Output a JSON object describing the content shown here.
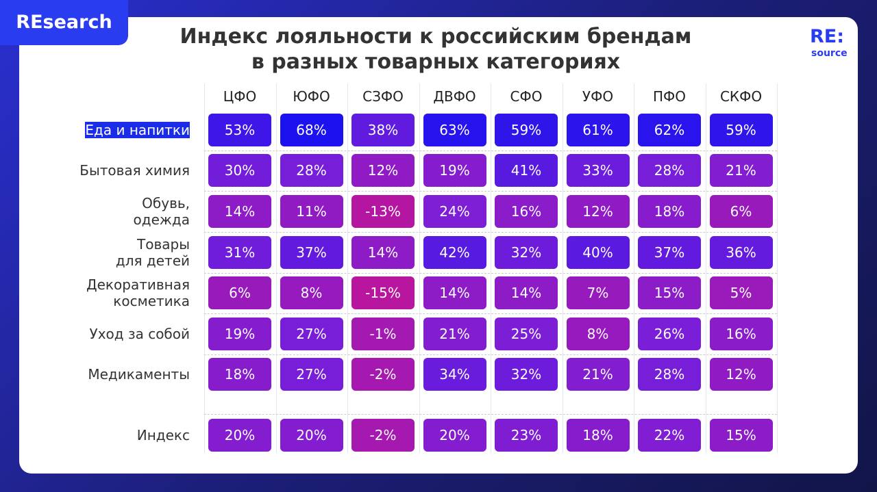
{
  "header": {
    "badge": "REsearch",
    "title": [
      "Индекс лояльности к российским брендам",
      "в разных товарных категориях"
    ],
    "logo": {
      "main": "RE:",
      "sub": "source"
    }
  },
  "table": {
    "columns": [
      "ЦФО",
      "ЮФО",
      "СЗФО",
      "ДВФО",
      "СФО",
      "УФО",
      "ПФО",
      "СКФО"
    ],
    "rows": [
      {
        "label": [
          "Еда и напитки"
        ],
        "cells": [
          "53%",
          "68%",
          "38%",
          "63%",
          "59%",
          "61%",
          "62%",
          "59%"
        ]
      },
      {
        "label": [
          "Бытовая химия"
        ],
        "cells": [
          "30%",
          "28%",
          "12%",
          "19%",
          "41%",
          "33%",
          "28%",
          "21%"
        ]
      },
      {
        "label": [
          "Обувь,",
          "одежда"
        ],
        "cells": [
          "14%",
          "11%",
          "-13%",
          "24%",
          "16%",
          "12%",
          "18%",
          "6%"
        ]
      },
      {
        "label": [
          "Товары",
          "для детей"
        ],
        "cells": [
          "31%",
          "37%",
          "14%",
          "42%",
          "32%",
          "40%",
          "37%",
          "36%"
        ]
      },
      {
        "label": [
          "Декоративная",
          "косметика"
        ],
        "cells": [
          "6%",
          "8%",
          "-15%",
          "14%",
          "14%",
          "7%",
          "15%",
          "5%"
        ]
      },
      {
        "label": [
          "Уход за собой"
        ],
        "cells": [
          "19%",
          "27%",
          "-1%",
          "21%",
          "25%",
          "8%",
          "26%",
          "16%"
        ]
      },
      {
        "label": [
          "Медикаменты"
        ],
        "cells": [
          "18%",
          "27%",
          "-2%",
          "34%",
          "32%",
          "21%",
          "28%",
          "12%"
        ]
      },
      {
        "label": [
          "Индекс"
        ],
        "cells": [
          "20%",
          "20%",
          "-2%",
          "20%",
          "23%",
          "18%",
          "22%",
          "15%"
        ]
      }
    ]
  }
}
